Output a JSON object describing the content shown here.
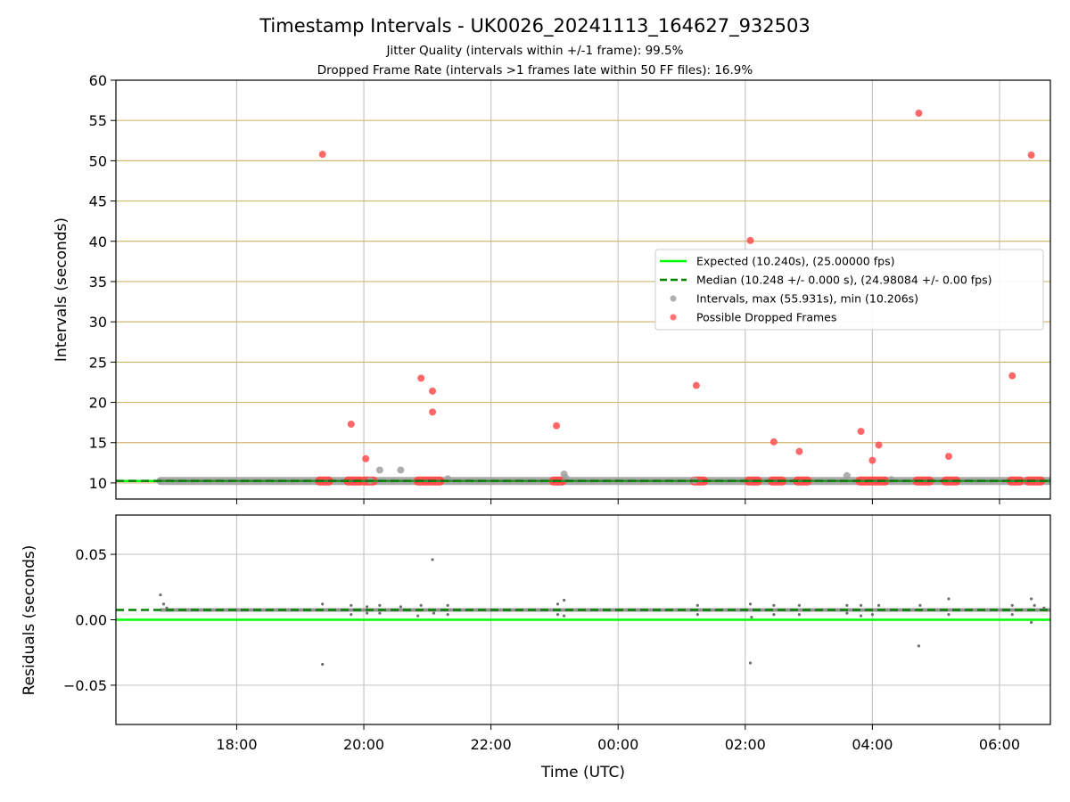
{
  "chart_data": {
    "type": "scatter",
    "title": "Timestamp Intervals - UK0026_20241113_164627_932503",
    "subtitle_1": "Jitter Quality (intervals within +/-1 frame): 99.5%",
    "subtitle_2": "Dropped Frame Rate (intervals >1 frames late within 50 FF files): 16.9%",
    "x_axis": {
      "label": "Time (UTC)",
      "range_hours": [
        16.1,
        30.8
      ],
      "tick_values_hours": [
        18,
        20,
        22,
        24,
        26,
        28,
        30
      ],
      "tick_labels": [
        "18:00",
        "20:00",
        "22:00",
        "00:00",
        "02:00",
        "04:00",
        "06:00"
      ],
      "grid": true
    },
    "panels": [
      {
        "name": "intervals",
        "ylabel": "Intervals (seconds)",
        "ylim": [
          8,
          60
        ],
        "yticks": [
          10,
          15,
          20,
          25,
          30,
          35,
          40,
          45,
          50,
          55,
          60
        ],
        "ytick_labels": [
          "10",
          "15",
          "20",
          "25",
          "30",
          "35",
          "40",
          "45",
          "50",
          "55",
          "60"
        ],
        "expected_line": 10.24,
        "median_line": 10.248,
        "interval_baseline": {
          "value": 10.24,
          "x_start": 16.8,
          "x_end": 30.8
        },
        "intervals": [
          {
            "x": 16.8,
            "y": 10.24
          },
          {
            "x": 20.25,
            "y": 11.6
          },
          {
            "x": 20.58,
            "y": 11.6
          },
          {
            "x": 21.32,
            "y": 10.5
          },
          {
            "x": 23.15,
            "y": 11.1
          },
          {
            "x": 23.18,
            "y": 10.6
          },
          {
            "x": 27.6,
            "y": 10.9
          },
          {
            "x": 20.1,
            "y": 10.3
          },
          {
            "x": 25.2,
            "y": 10.3
          },
          {
            "x": 28.3,
            "y": 10.4
          },
          {
            "x": 30.8,
            "y": 10.24
          }
        ],
        "dropped_frames": [
          {
            "x": 19.35,
            "y": 50.8
          },
          {
            "x": 19.8,
            "y": 17.3
          },
          {
            "x": 20.03,
            "y": 13.0
          },
          {
            "x": 20.9,
            "y": 23.0
          },
          {
            "x": 21.08,
            "y": 21.4
          },
          {
            "x": 21.08,
            "y": 18.8
          },
          {
            "x": 23.03,
            "y": 17.1
          },
          {
            "x": 25.23,
            "y": 22.1
          },
          {
            "x": 26.08,
            "y": 40.1
          },
          {
            "x": 26.45,
            "y": 15.1
          },
          {
            "x": 26.85,
            "y": 13.9
          },
          {
            "x": 27.82,
            "y": 16.4
          },
          {
            "x": 28.0,
            "y": 12.8
          },
          {
            "x": 28.1,
            "y": 14.7
          },
          {
            "x": 28.73,
            "y": 55.9
          },
          {
            "x": 29.2,
            "y": 13.3
          },
          {
            "x": 30.2,
            "y": 23.3
          },
          {
            "x": 30.5,
            "y": 50.7
          }
        ],
        "dropped_clusters": [
          {
            "x_start": 19.3,
            "x_end": 19.45,
            "y": 10.24
          },
          {
            "x_start": 19.75,
            "x_end": 19.95,
            "y": 10.24
          },
          {
            "x_start": 20.0,
            "x_end": 20.15,
            "y": 10.24
          },
          {
            "x_start": 20.85,
            "x_end": 21.2,
            "y": 10.24
          },
          {
            "x_start": 22.98,
            "x_end": 23.12,
            "y": 10.24
          },
          {
            "x_start": 25.2,
            "x_end": 25.35,
            "y": 10.24
          },
          {
            "x_start": 26.05,
            "x_end": 26.2,
            "y": 10.24
          },
          {
            "x_start": 26.42,
            "x_end": 26.58,
            "y": 10.24
          },
          {
            "x_start": 26.82,
            "x_end": 26.98,
            "y": 10.24
          },
          {
            "x_start": 27.8,
            "x_end": 28.2,
            "y": 10.24
          },
          {
            "x_start": 28.7,
            "x_end": 28.9,
            "y": 10.24
          },
          {
            "x_start": 29.15,
            "x_end": 29.32,
            "y": 10.24
          },
          {
            "x_start": 30.18,
            "x_end": 30.32,
            "y": 10.24
          },
          {
            "x_start": 30.45,
            "x_end": 30.65,
            "y": 10.24
          }
        ]
      },
      {
        "name": "residuals",
        "ylabel": "Residuals (seconds)",
        "ylim": [
          -0.08,
          0.08
        ],
        "yticks": [
          -0.05,
          0.0,
          0.05
        ],
        "ytick_labels": [
          "−0.05",
          "0.00",
          "0.05"
        ],
        "expected_line": 0.0,
        "median_line": 0.0075,
        "residual_band": {
          "value": 0.0075,
          "x_start": 16.8,
          "x_end": 30.8
        },
        "residuals": [
          {
            "x": 16.8,
            "y": 0.019
          },
          {
            "x": 16.85,
            "y": 0.012
          },
          {
            "x": 16.9,
            "y": 0.009
          },
          {
            "x": 19.35,
            "y": -0.034
          },
          {
            "x": 19.35,
            "y": 0.012
          },
          {
            "x": 19.8,
            "y": 0.011
          },
          {
            "x": 19.8,
            "y": 0.004
          },
          {
            "x": 20.05,
            "y": 0.01
          },
          {
            "x": 20.05,
            "y": 0.005
          },
          {
            "x": 20.25,
            "y": 0.011
          },
          {
            "x": 20.25,
            "y": 0.005
          },
          {
            "x": 20.58,
            "y": 0.01
          },
          {
            "x": 20.85,
            "y": 0.003
          },
          {
            "x": 20.9,
            "y": 0.011
          },
          {
            "x": 21.08,
            "y": 0.046
          },
          {
            "x": 21.1,
            "y": 0.005
          },
          {
            "x": 21.32,
            "y": 0.011
          },
          {
            "x": 21.32,
            "y": 0.004
          },
          {
            "x": 23.05,
            "y": 0.004
          },
          {
            "x": 23.05,
            "y": 0.012
          },
          {
            "x": 23.15,
            "y": 0.015
          },
          {
            "x": 23.15,
            "y": 0.003
          },
          {
            "x": 25.25,
            "y": 0.011
          },
          {
            "x": 25.25,
            "y": 0.004
          },
          {
            "x": 26.08,
            "y": -0.033
          },
          {
            "x": 26.08,
            "y": 0.012
          },
          {
            "x": 26.1,
            "y": 0.002
          },
          {
            "x": 26.45,
            "y": 0.011
          },
          {
            "x": 26.45,
            "y": 0.004
          },
          {
            "x": 26.85,
            "y": 0.011
          },
          {
            "x": 26.85,
            "y": 0.004
          },
          {
            "x": 27.6,
            "y": 0.011
          },
          {
            "x": 27.6,
            "y": 0.005
          },
          {
            "x": 27.82,
            "y": 0.011
          },
          {
            "x": 27.82,
            "y": 0.003
          },
          {
            "x": 28.0,
            "y": 0.004
          },
          {
            "x": 28.1,
            "y": 0.011
          },
          {
            "x": 28.73,
            "y": -0.02
          },
          {
            "x": 28.75,
            "y": 0.011
          },
          {
            "x": 29.2,
            "y": 0.016
          },
          {
            "x": 29.2,
            "y": 0.004
          },
          {
            "x": 30.2,
            "y": 0.011
          },
          {
            "x": 30.2,
            "y": 0.004
          },
          {
            "x": 30.5,
            "y": 0.016
          },
          {
            "x": 30.5,
            "y": -0.002
          },
          {
            "x": 30.55,
            "y": 0.011
          },
          {
            "x": 30.7,
            "y": 0.009
          }
        ]
      }
    ],
    "legend": {
      "placement": "center-right",
      "entries": [
        {
          "label": "Expected (10.240s), (25.00000 fps)",
          "style": "line",
          "color": "#00ff00"
        },
        {
          "label": "Median (10.248 +/- 0.000 s), (24.98084 +/- 0.00 fps)",
          "style": "dashed",
          "color": "#008000"
        },
        {
          "label": "Intervals, max (55.931s), min (10.206s)",
          "style": "marker",
          "color": "#a0a0a0"
        },
        {
          "label": "Possible Dropped Frames",
          "style": "marker",
          "color": "#ff5a5a"
        }
      ]
    },
    "colors": {
      "expected": "#00ff00",
      "median": "#008000",
      "interval": "#a0a0a0",
      "dropped": "#ff4d4d",
      "residual": "#707070",
      "hgrid_intervals": "#d2b870",
      "grid": "#c8c8c8"
    }
  }
}
